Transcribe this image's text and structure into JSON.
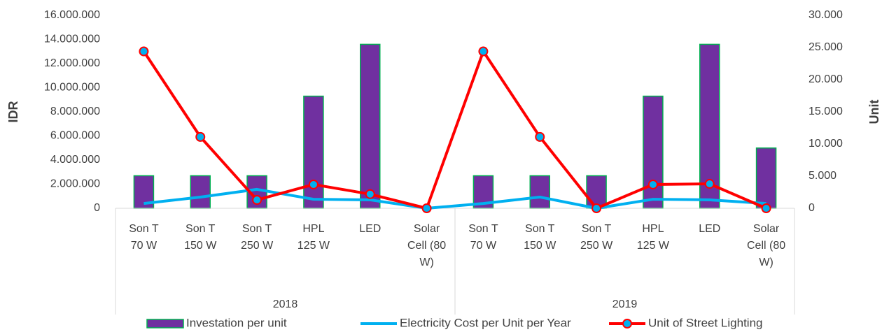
{
  "chart_data": {
    "type": "combo",
    "categories": [
      "Son T 70 W",
      "Son T 150 W",
      "Son T 250 W",
      "HPL 125 W",
      "LED",
      "Solar Cell (80 W)",
      "Son T 70 W",
      "Son T 150 W",
      "Son T 250 W",
      "HPL 125 W",
      "LED",
      "Solar Cell (80 W)"
    ],
    "groups": [
      {
        "name": "2018",
        "size": 6
      },
      {
        "name": "2019",
        "size": 6
      }
    ],
    "ylabel": "IDR",
    "y2label": "Unit",
    "ylim": [
      0,
      16000000
    ],
    "yticks": [
      0,
      {
        "value": 2000000,
        "label": "2.000.000"
      },
      {
        "value": 4000000,
        "label": "4.000.000"
      },
      {
        "value": 6000000,
        "label": "6.000.000"
      },
      {
        "value": 8000000,
        "label": "8.000.000"
      },
      {
        "value": 10000000,
        "label": "10.000.000"
      },
      {
        "value": 12000000,
        "label": "12.000.000"
      },
      {
        "value": 14000000,
        "label": "14.000.000"
      },
      {
        "value": 16000000,
        "label": "16.000.000"
      }
    ],
    "y2lim": [
      0,
      30000
    ],
    "y2ticks": [
      0,
      {
        "value": 5000,
        "label": "5.000"
      },
      {
        "value": 10000,
        "label": "10.000"
      },
      {
        "value": 15000,
        "label": "15.000"
      },
      {
        "value": 20000,
        "label": "20.000"
      },
      {
        "value": 25000,
        "label": "25.000"
      },
      {
        "value": 30000,
        "label": "30.000"
      }
    ],
    "legend": "bottom",
    "series": [
      {
        "name": "Investation per unit",
        "type": "bar",
        "color": "#7030a0",
        "edge": "#00b050",
        "values": [
          2700000,
          2700000,
          2700000,
          9300000,
          13600000,
          0,
          2700000,
          2700000,
          2700000,
          9300000,
          13600000,
          5000000
        ]
      },
      {
        "name": "Electricity Cost per Unit per Year",
        "type": "line",
        "color": "#00b0f0",
        "values": [
          400000,
          930000,
          1570000,
          750000,
          700000,
          0,
          400000,
          930000,
          0,
          750000,
          700000,
          400000
        ]
      },
      {
        "name": "Unit of Street Lighting",
        "type": "line",
        "axis": "y2",
        "color": "#ff0000",
        "marker": "#00b0f0",
        "values": [
          24400,
          11100,
          1300,
          3700,
          2200,
          0,
          24400,
          11100,
          0,
          3700,
          3800,
          0
        ]
      }
    ]
  }
}
